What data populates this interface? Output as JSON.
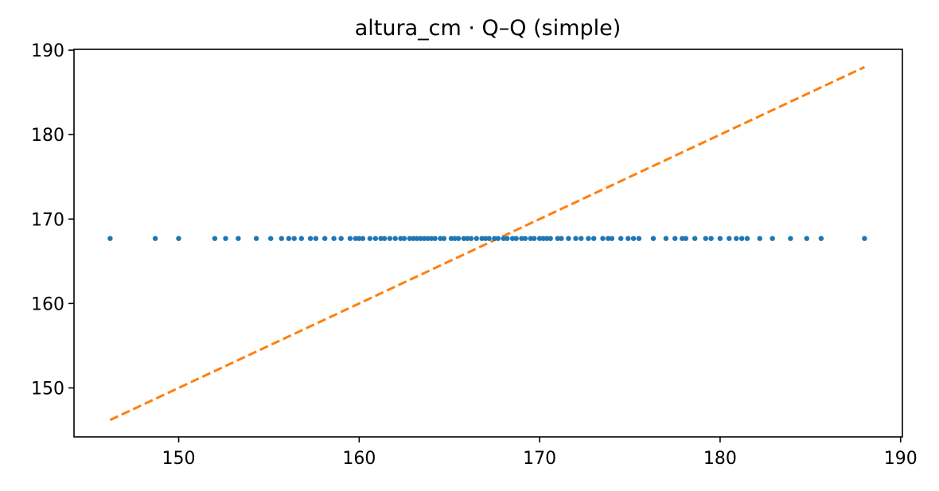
{
  "chart_data": {
    "type": "scatter",
    "title": "altura_cm · Q–Q (simple)",
    "xlabel": "",
    "ylabel": "",
    "xlim": [
      144.2,
      190.1
    ],
    "ylim": [
      144.2,
      190.1
    ],
    "xticks": [
      150,
      160,
      170,
      180,
      190
    ],
    "yticks": [
      150,
      160,
      170,
      180,
      190
    ],
    "xtick_labels": [
      "150",
      "160",
      "170",
      "180",
      "190"
    ],
    "ytick_labels": [
      "150",
      "160",
      "170",
      "180",
      "190"
    ],
    "grid": false,
    "legend": "none",
    "series": [
      {
        "type": "scatter",
        "color": "#1f77b4",
        "y_constant": 167.7,
        "x": [
          146.2,
          148.7,
          150.0,
          152.0,
          152.6,
          153.3,
          154.3,
          155.1,
          155.7,
          156.1,
          156.4,
          156.8,
          157.3,
          157.6,
          158.1,
          158.6,
          159.0,
          159.5,
          159.8,
          160.0,
          160.2,
          160.6,
          160.9,
          161.2,
          161.4,
          161.7,
          162.0,
          162.3,
          162.5,
          162.8,
          163.0,
          163.2,
          163.4,
          163.6,
          163.8,
          164.0,
          164.2,
          164.5,
          164.7,
          165.1,
          165.3,
          165.5,
          165.8,
          166.0,
          166.2,
          166.5,
          166.8,
          167.0,
          167.2,
          167.5,
          167.7,
          168.0,
          168.2,
          168.5,
          168.7,
          169.0,
          169.2,
          169.5,
          169.7,
          170.0,
          170.2,
          170.4,
          170.6,
          171.0,
          171.2,
          171.6,
          172.0,
          172.3,
          172.7,
          173.0,
          173.5,
          173.8,
          174.0,
          174.5,
          174.9,
          175.2,
          175.5,
          176.3,
          177.0,
          177.5,
          177.9,
          178.1,
          178.6,
          179.2,
          179.5,
          180.0,
          180.5,
          180.9,
          181.2,
          181.5,
          182.2,
          182.9,
          183.9,
          184.8,
          185.6,
          188.0
        ]
      },
      {
        "type": "line",
        "style": "dashed",
        "color": "#ff7f0e",
        "x": [
          146.2,
          188.0
        ],
        "y": [
          146.2,
          188.0
        ]
      }
    ]
  }
}
